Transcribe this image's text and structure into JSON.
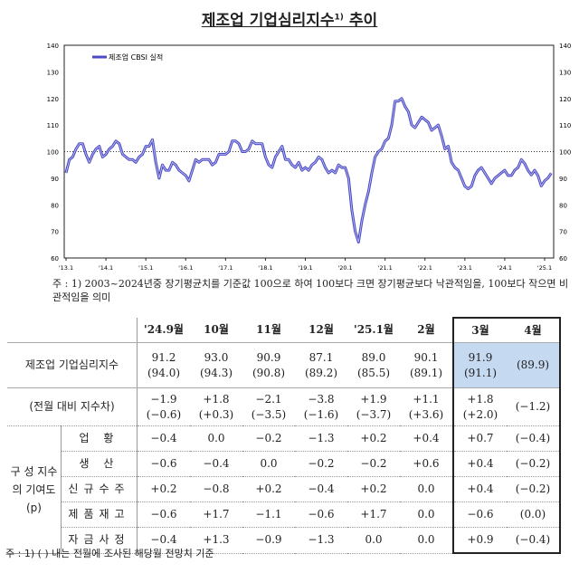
{
  "title": "제조업 기업심리지수",
  "title_sup": "1)",
  "title_suffix": "추이",
  "chart_data": {
    "type": "line",
    "legend": "제조업 CBSI 실적",
    "legend_position": "top-left",
    "color": "#4b4bc8",
    "ylim": [
      60,
      140
    ],
    "yticks": [
      60,
      70,
      80,
      90,
      100,
      110,
      120,
      130,
      140
    ],
    "xtick_labels": [
      "'13.1",
      "'14.1",
      "'15.1",
      "'16.1",
      "'17.1",
      "'18.1",
      "'19.1",
      "'20.1",
      "'21.1",
      "'22.1",
      "'23.1",
      "'24.1",
      "'25.1"
    ],
    "reference_line": 100,
    "start": "2013.1",
    "end": "2025.3",
    "values": [
      92,
      97,
      98,
      101,
      103,
      103,
      99,
      96,
      99,
      101,
      102,
      98,
      99,
      101,
      102,
      104,
      103,
      99,
      98,
      97,
      97,
      96,
      98,
      99,
      102,
      102,
      104.5,
      96,
      90,
      95,
      93,
      93,
      96,
      95,
      93,
      92,
      91,
      89,
      93,
      97,
      96,
      97,
      97,
      97,
      95,
      96,
      99,
      99,
      99,
      100,
      104,
      104,
      103,
      100,
      100,
      101,
      104,
      103,
      103,
      103,
      98,
      95,
      94,
      98,
      100,
      102,
      97,
      97,
      95,
      94,
      96,
      93,
      94,
      93,
      95,
      96,
      98,
      97,
      94,
      92,
      93,
      92,
      95,
      94,
      94,
      90,
      78,
      70,
      66,
      74,
      80,
      85,
      92,
      98,
      100,
      101,
      104,
      105,
      110,
      119,
      119,
      120,
      117,
      115,
      110,
      109,
      111,
      113,
      112,
      111,
      108,
      109,
      110,
      106,
      101,
      102,
      96,
      94,
      93,
      90,
      87,
      86,
      87,
      91,
      93,
      94,
      92,
      90,
      88,
      90,
      91,
      92,
      93,
      91,
      91,
      93,
      94,
      97,
      95.5,
      93,
      91.2,
      93.0,
      90.9,
      87.1,
      89.0,
      90.1,
      91.9
    ]
  },
  "chart_note": "주 : 1) 2003~2024년중 장기평균치를 기준값 100으로 하여 100보다 크면 장기평균보다 낙관적임을, 100보다 작으면 비관적임을 의미",
  "table": {
    "headers": [
      "'24.9월",
      "10월",
      "11월",
      "12월",
      "'25.1월",
      "2월",
      "3월",
      "4월"
    ],
    "index_label": "제조업 기업심리지수",
    "index_values": [
      "91.2",
      "93.0",
      "90.9",
      "87.1",
      "89.0",
      "90.1",
      "91.9",
      ""
    ],
    "index_forecast": [
      "(94.0)",
      "(94.3)",
      "(90.8)",
      "(89.2)",
      "(85.5)",
      "(89.1)",
      "(91.1)",
      "(89.9)"
    ],
    "diff_label": "(전월 대비 지수차)",
    "diff_values": [
      "−1.9",
      "+1.8",
      "−2.1",
      "−3.8",
      "+1.9",
      "+1.1",
      "+1.8",
      ""
    ],
    "diff_forecast": [
      "(−0.6)",
      "(+0.3)",
      "(−3.5)",
      "(−1.6)",
      "(−3.7)",
      "(+3.6)",
      "(+2.0)",
      "(−1.2)"
    ],
    "group_label": "구 성 지수의 기여도 (p)",
    "rows": [
      {
        "label": "업 황",
        "values": [
          "−0.4",
          "0.0",
          "−0.2",
          "−1.3",
          "+0.2",
          "+0.4",
          "+0.7",
          "(−0.4)"
        ]
      },
      {
        "label": "생 산",
        "values": [
          "−0.6",
          "−0.4",
          "0.0",
          "−0.2",
          "−0.2",
          "+0.6",
          "+0.4",
          "(−0.2)"
        ]
      },
      {
        "label": "신규수주",
        "values": [
          "+0.2",
          "−0.8",
          "+0.2",
          "−0.4",
          "+0.2",
          "0.0",
          "+0.4",
          "(−0.2)"
        ]
      },
      {
        "label": "제품재고",
        "values": [
          "−0.6",
          "+1.7",
          "−1.1",
          "−0.6",
          "+1.7",
          "0.0",
          "−0.6",
          "(0.0)"
        ]
      },
      {
        "label": "자금사정",
        "values": [
          "−0.4",
          "+1.3",
          "−0.9",
          "−1.3",
          "0.0",
          "0.0",
          "+0.9",
          "(−0.4)"
        ]
      }
    ]
  },
  "table_note": "주 : 1) (    ) 내는 전월에 조사된 해당월 전망치 기준"
}
